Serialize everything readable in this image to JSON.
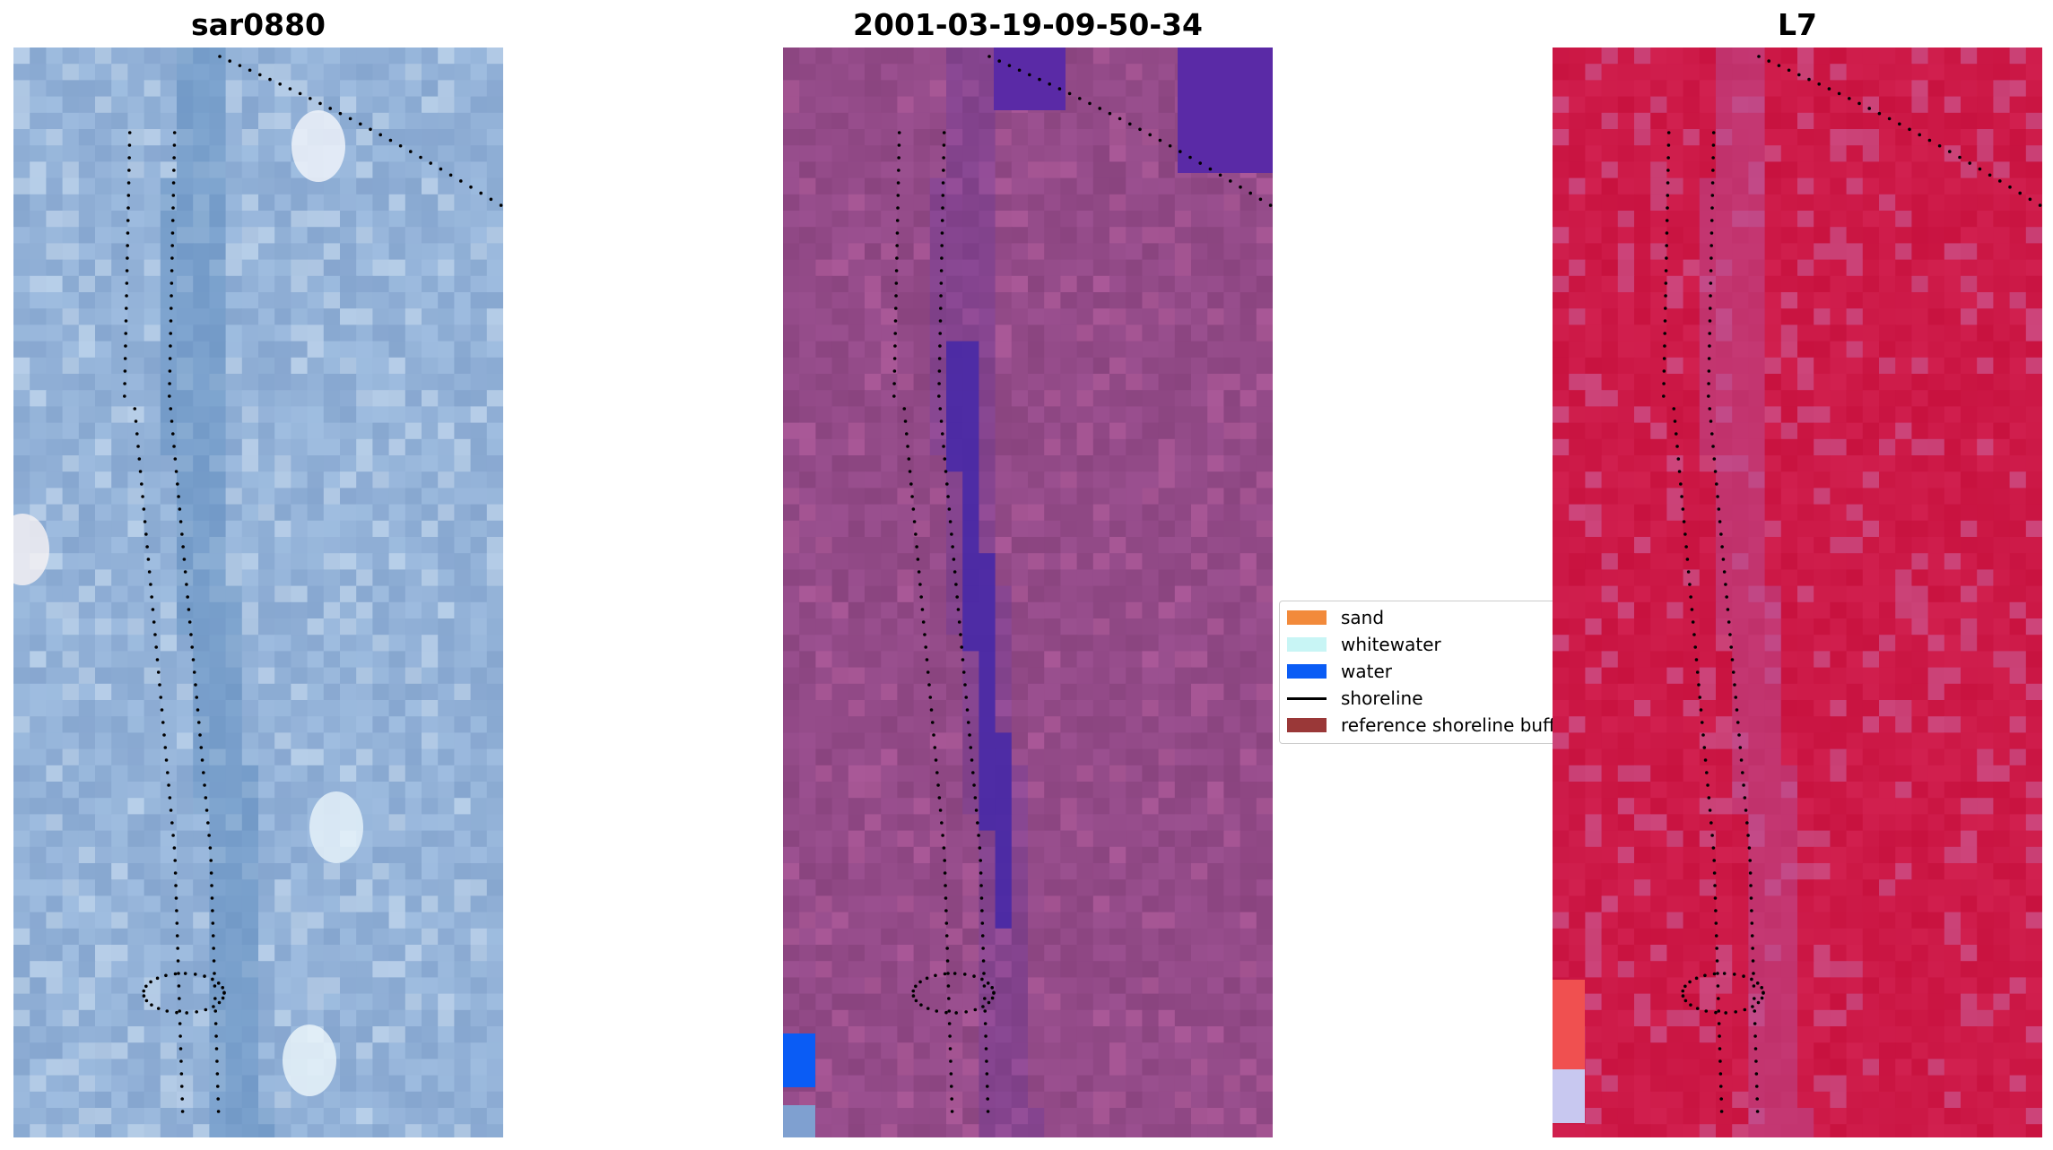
{
  "panels": [
    {
      "id": "p1",
      "title": "sar0880",
      "base": "#86a6cf",
      "alt": "#9fbde0",
      "light": "#cfe0f1",
      "channel": "#5f8dbf"
    },
    {
      "id": "p2",
      "title": "2001-03-19-09-50-34",
      "base": "#8a447f",
      "alt": "#9b5090",
      "light": "#b8609f",
      "channel": "#4a2aa6"
    },
    {
      "id": "p3",
      "title": "L7",
      "base": "#c8123f",
      "alt": "#d1204f",
      "light": "#c96aa6",
      "channel": "#b84f96"
    }
  ],
  "legend": {
    "items": [
      {
        "label": "sand",
        "color": "#f28a3b",
        "kind": "patch"
      },
      {
        "label": "whitewater",
        "color": "#c8f5f5",
        "kind": "patch"
      },
      {
        "label": "water",
        "color": "#0a5cf5",
        "kind": "patch"
      },
      {
        "label": "shoreline",
        "color": "#000000",
        "kind": "line"
      },
      {
        "label": "reference shoreline buffer",
        "color": "#9a3838",
        "kind": "patch"
      }
    ]
  }
}
